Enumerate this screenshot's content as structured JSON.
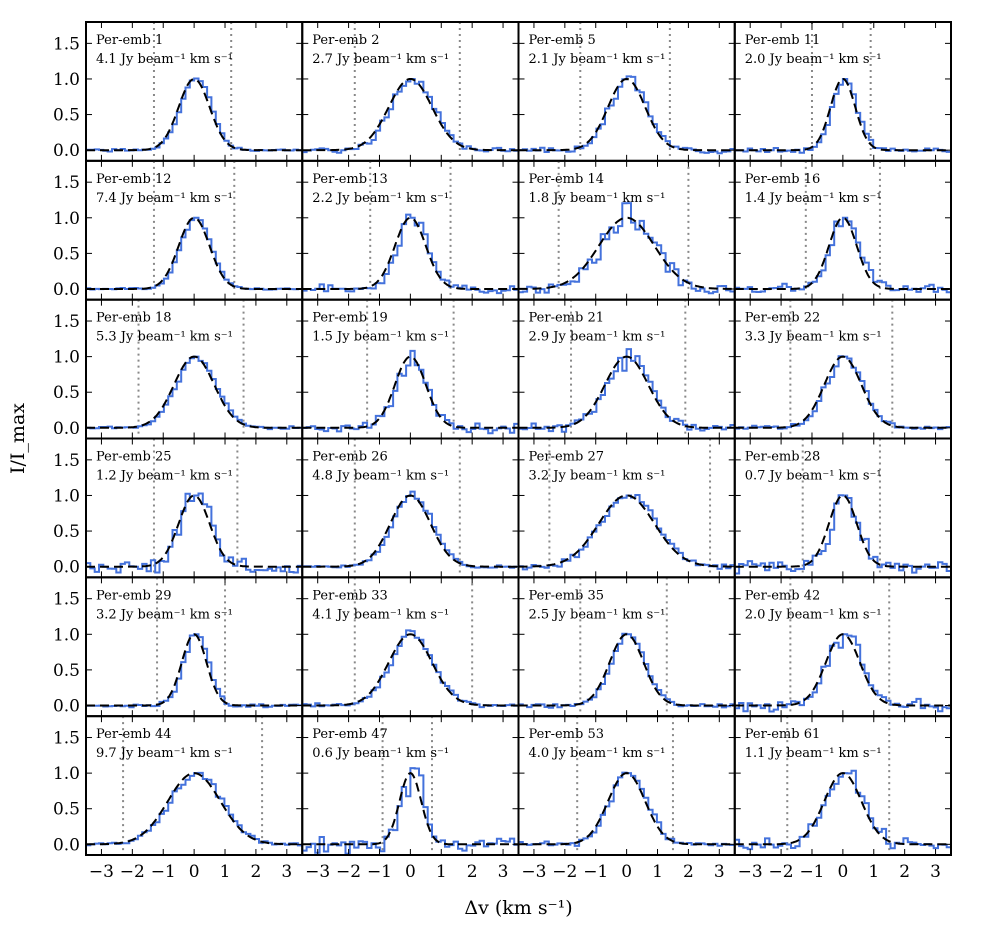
{
  "chart_data": {
    "type": "line",
    "layout": {
      "rows": 6,
      "cols": 4,
      "sharex": true,
      "sharey": true
    },
    "xlabel": "Δv (km s⁻¹)",
    "ylabel": "I/I_max",
    "xlim": [
      -3.5,
      3.5
    ],
    "ylim": [
      -0.15,
      1.8
    ],
    "xticks": [
      -3,
      -2,
      -1,
      0,
      1,
      2,
      3
    ],
    "yticks": [
      0.0,
      0.5,
      1.0,
      1.5
    ],
    "xtick_labels": [
      "−3",
      "−2",
      "−1",
      "0",
      "1",
      "2",
      "3"
    ],
    "ytick_labels": [
      "0.0",
      "0.5",
      "1.0",
      "1.5"
    ],
    "colors": {
      "spectrum": "#4472dc",
      "fit": "#000000",
      "bounds": "#888888"
    },
    "panels": [
      {
        "name": "Per-emb 1",
        "flux": "4.1 Jy beam⁻¹ km s⁻¹",
        "bounds": [
          -1.3,
          1.2
        ],
        "fit_sigma": 0.5,
        "noise": 0.03,
        "seed": 1
      },
      {
        "name": "Per-emb 2",
        "flux": "2.7 Jy beam⁻¹ km s⁻¹",
        "bounds": [
          -1.8,
          1.6
        ],
        "fit_sigma": 0.7,
        "noise": 0.05,
        "seed": 2
      },
      {
        "name": "Per-emb 5",
        "flux": "2.1 Jy beam⁻¹ km s⁻¹",
        "bounds": [
          -1.5,
          1.4
        ],
        "fit_sigma": 0.6,
        "noise": 0.05,
        "seed": 3
      },
      {
        "name": "Per-emb 11",
        "flux": "2.0 Jy beam⁻¹ km s⁻¹",
        "bounds": [
          -1.0,
          0.9
        ],
        "fit_sigma": 0.4,
        "noise": 0.05,
        "seed": 4
      },
      {
        "name": "Per-emb 12",
        "flux": "7.4 Jy beam⁻¹ km s⁻¹",
        "bounds": [
          -1.3,
          1.3
        ],
        "fit_sigma": 0.5,
        "noise": 0.02,
        "seed": 5
      },
      {
        "name": "Per-emb 13",
        "flux": "2.2 Jy beam⁻¹ km s⁻¹",
        "bounds": [
          -1.3,
          1.3
        ],
        "fit_sigma": 0.5,
        "noise": 0.08,
        "seed": 6
      },
      {
        "name": "Per-emb 14",
        "flux": "1.8 Jy beam⁻¹ km s⁻¹",
        "bounds": [
          -2.2,
          2.0
        ],
        "fit_sigma": 0.9,
        "noise": 0.12,
        "seed": 7
      },
      {
        "name": "Per-emb 16",
        "flux": "1.4 Jy beam⁻¹ km s⁻¹",
        "bounds": [
          -1.2,
          1.2
        ],
        "fit_sigma": 0.45,
        "noise": 0.1,
        "seed": 8
      },
      {
        "name": "Per-emb 18",
        "flux": "5.3 Jy beam⁻¹ km s⁻¹",
        "bounds": [
          -1.8,
          1.6
        ],
        "fit_sigma": 0.65,
        "noise": 0.03,
        "seed": 9
      },
      {
        "name": "Per-emb 19",
        "flux": "1.5 Jy beam⁻¹ km s⁻¹",
        "bounds": [
          -1.4,
          1.4
        ],
        "fit_sigma": 0.5,
        "noise": 0.1,
        "seed": 10
      },
      {
        "name": "Per-emb 21",
        "flux": "2.9 Jy beam⁻¹ km s⁻¹",
        "bounds": [
          -1.8,
          1.9
        ],
        "fit_sigma": 0.7,
        "noise": 0.1,
        "seed": 11
      },
      {
        "name": "Per-emb 22",
        "flux": "3.3 Jy beam⁻¹ km s⁻¹",
        "bounds": [
          -1.7,
          1.6
        ],
        "fit_sigma": 0.6,
        "noise": 0.05,
        "seed": 12
      },
      {
        "name": "Per-emb 25",
        "flux": "1.2 Jy beam⁻¹ km s⁻¹",
        "bounds": [
          -1.3,
          1.4
        ],
        "fit_sigma": 0.5,
        "noise": 0.15,
        "seed": 13
      },
      {
        "name": "Per-emb 26",
        "flux": "4.8 Jy beam⁻¹ km s⁻¹",
        "bounds": [
          -1.8,
          1.6
        ],
        "fit_sigma": 0.65,
        "noise": 0.03,
        "seed": 14
      },
      {
        "name": "Per-emb 27",
        "flux": "3.2 Jy beam⁻¹ km s⁻¹",
        "bounds": [
          -2.5,
          2.7
        ],
        "fit_sigma": 0.9,
        "noise": 0.05,
        "seed": 15
      },
      {
        "name": "Per-emb 28",
        "flux": "0.7 Jy beam⁻¹ km s⁻¹",
        "bounds": [
          -1.3,
          1.2
        ],
        "fit_sigma": 0.45,
        "noise": 0.15,
        "seed": 16
      },
      {
        "name": "Per-emb 29",
        "flux": "3.2 Jy beam⁻¹ km s⁻¹",
        "bounds": [
          -1.2,
          1.0
        ],
        "fit_sigma": 0.4,
        "noise": 0.04,
        "seed": 17
      },
      {
        "name": "Per-emb 33",
        "flux": "4.1 Jy beam⁻¹ km s⁻¹",
        "bounds": [
          -1.8,
          2.0
        ],
        "fit_sigma": 0.7,
        "noise": 0.04,
        "seed": 18
      },
      {
        "name": "Per-emb 35",
        "flux": "2.5 Jy beam⁻¹ km s⁻¹",
        "bounds": [
          -1.5,
          1.3
        ],
        "fit_sigma": 0.55,
        "noise": 0.04,
        "seed": 19
      },
      {
        "name": "Per-emb 42",
        "flux": "2.0 Jy beam⁻¹ km s⁻¹",
        "bounds": [
          -1.7,
          1.5
        ],
        "fit_sigma": 0.55,
        "noise": 0.1,
        "seed": 20
      },
      {
        "name": "Per-emb 44",
        "flux": "9.7 Jy beam⁻¹ km s⁻¹",
        "bounds": [
          -2.3,
          2.2
        ],
        "fit_sigma": 0.85,
        "noise": 0.03,
        "seed": 21
      },
      {
        "name": "Per-emb 47",
        "flux": "0.6 Jy beam⁻¹ km s⁻¹",
        "bounds": [
          -0.9,
          0.7
        ],
        "fit_sigma": 0.35,
        "noise": 0.15,
        "seed": 22
      },
      {
        "name": "Per-emb 53",
        "flux": "4.0 Jy beam⁻¹ km s⁻¹",
        "bounds": [
          -1.6,
          1.5
        ],
        "fit_sigma": 0.6,
        "noise": 0.05,
        "seed": 23
      },
      {
        "name": "Per-emb 61",
        "flux": "1.1 Jy beam⁻¹ km s⁻¹",
        "bounds": [
          -1.8,
          1.5
        ],
        "fit_sigma": 0.6,
        "noise": 0.12,
        "seed": 24
      }
    ]
  }
}
